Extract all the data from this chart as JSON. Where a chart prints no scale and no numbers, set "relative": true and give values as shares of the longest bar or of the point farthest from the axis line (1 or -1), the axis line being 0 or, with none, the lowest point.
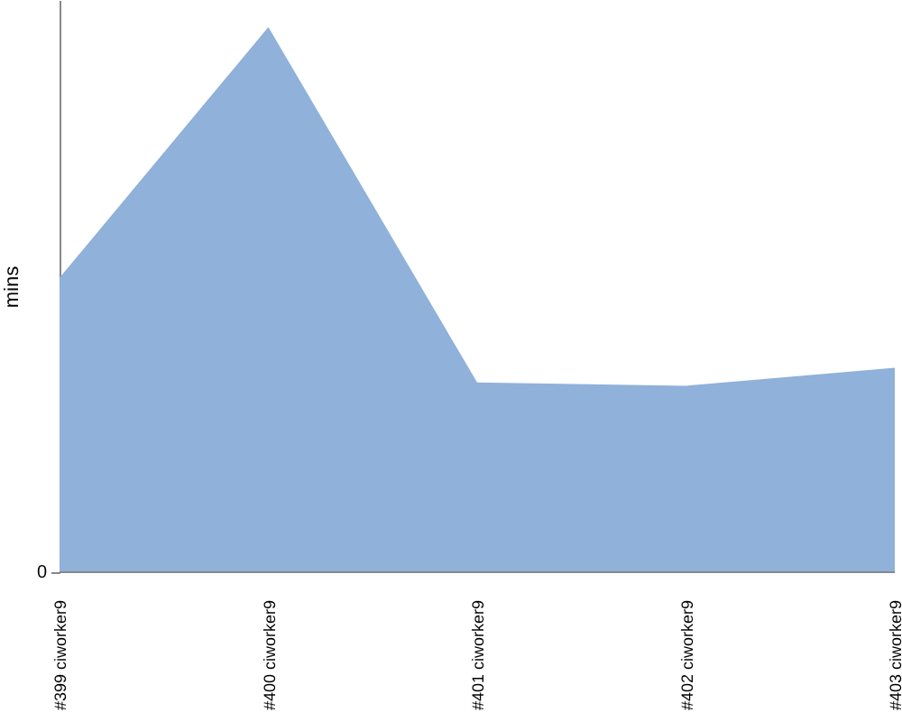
{
  "chart_data": {
    "type": "area",
    "ylabel": "mins",
    "categories": [
      "#399 ciworker9",
      "#400 ciworker9",
      "#401 ciworker9",
      "#402 ciworker9",
      "#403 ciworker9"
    ],
    "values": [
      0.54,
      1,
      0.348,
      0.342,
      0.375
    ],
    "color": "#8fb1da",
    "relative": true,
    "annotations": [
      "0"
    ]
  }
}
